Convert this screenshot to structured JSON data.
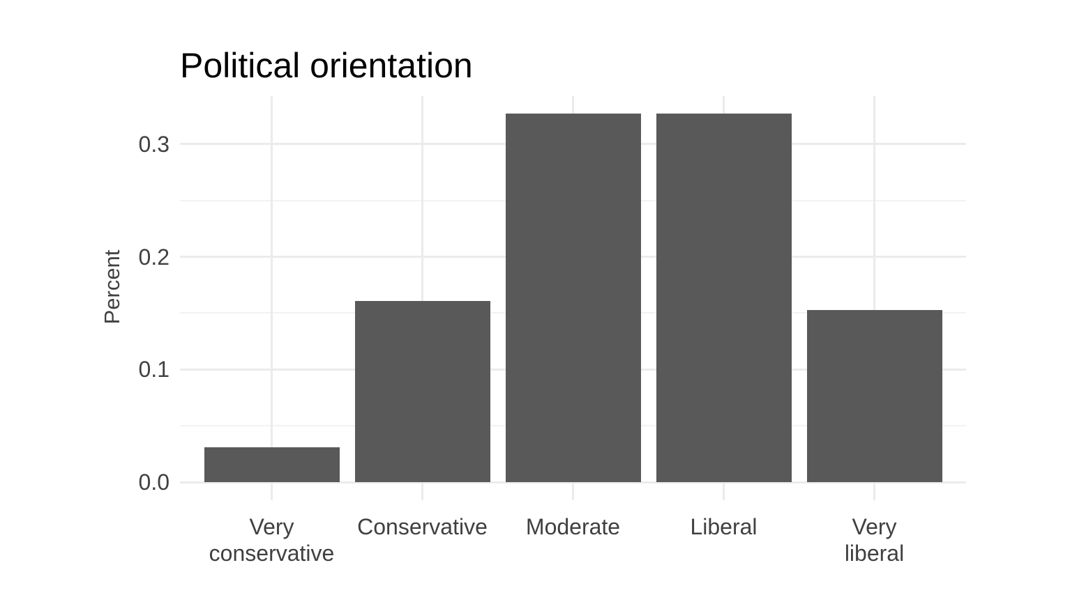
{
  "chart_data": {
    "type": "bar",
    "title": "Political orientation",
    "xlabel": "",
    "ylabel": "Percent",
    "categories": [
      "Very conservative",
      "Conservative",
      "Moderate",
      "Liberal",
      "Very liberal"
    ],
    "category_lines": [
      [
        "Very",
        "conservative"
      ],
      [
        "Conservative"
      ],
      [
        "Moderate"
      ],
      [
        "Liberal"
      ],
      [
        "Very",
        "liberal"
      ]
    ],
    "values": [
      0.031,
      0.161,
      0.327,
      0.327,
      0.153
    ],
    "ylim": [
      0,
      0.343
    ],
    "yticks": [
      0,
      0.1,
      0.2,
      0.3
    ],
    "ytick_labels": [
      "0.0",
      "0.1",
      "0.2",
      "0.3"
    ],
    "minor_yticks": [
      0.05,
      0.15,
      0.25
    ],
    "grid": true,
    "legend_position": "none",
    "colors": {
      "bar_fill": "#595959",
      "grid_major": "#ebebeb",
      "grid_minor": "#f2f2f2",
      "axis_text": "#404040",
      "title_text": "#000000",
      "background": "#ffffff"
    }
  }
}
